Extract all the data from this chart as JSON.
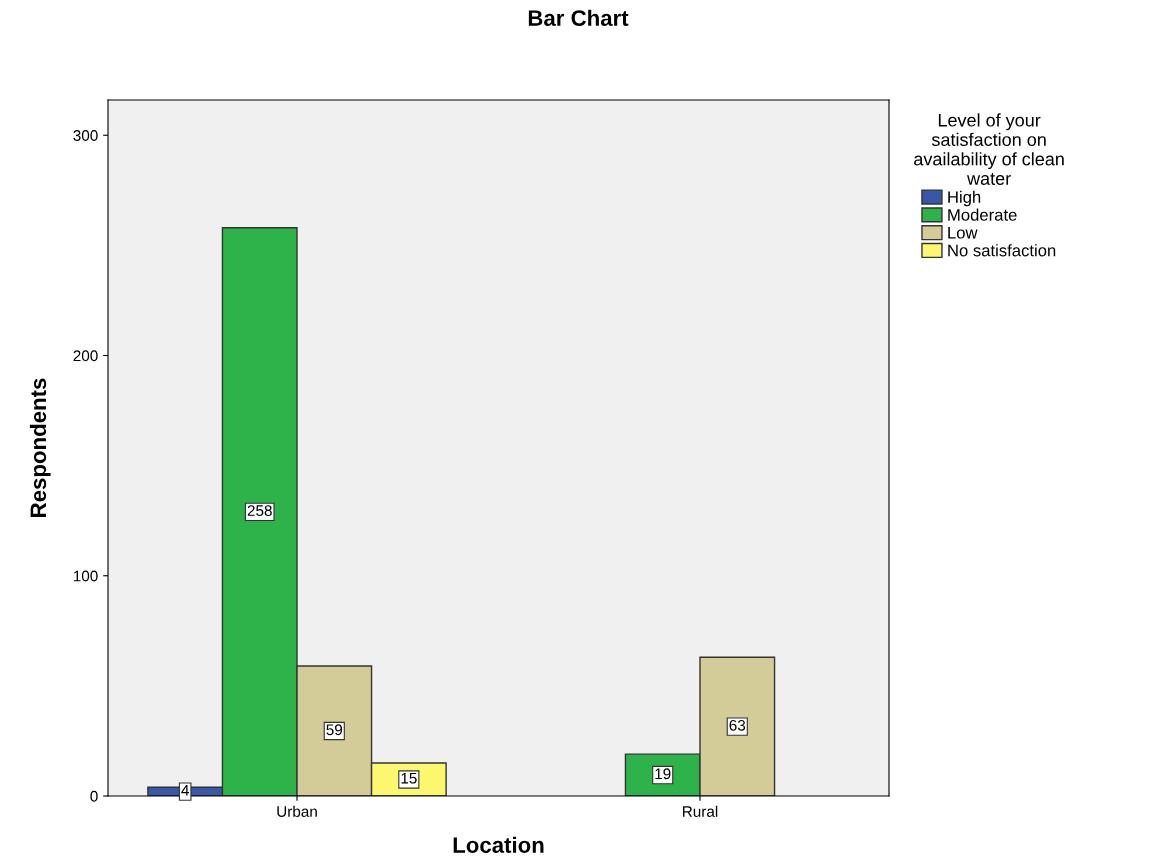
{
  "chart_data": {
    "type": "bar",
    "title": "Bar Chart",
    "xlabel": "Location",
    "ylabel": "Respondents",
    "legend_title": "Level of your\nsatisfaction on\navailability of clean\nwater",
    "categories": [
      "Urban",
      "Rural"
    ],
    "series": [
      {
        "name": "High",
        "color": "#3a56a8",
        "values": [
          4,
          null
        ]
      },
      {
        "name": "Moderate",
        "color": "#2db34a",
        "values": [
          258,
          19
        ]
      },
      {
        "name": "Low",
        "color": "#d4cc98",
        "values": [
          59,
          63
        ]
      },
      {
        "name": "No satisfaction",
        "color": "#fbf870",
        "values": [
          15,
          null
        ]
      }
    ],
    "ylim": [
      0,
      316
    ],
    "yticks": [
      0,
      100,
      200,
      300
    ],
    "data_labels": true,
    "legend": "top right",
    "grid": false
  }
}
